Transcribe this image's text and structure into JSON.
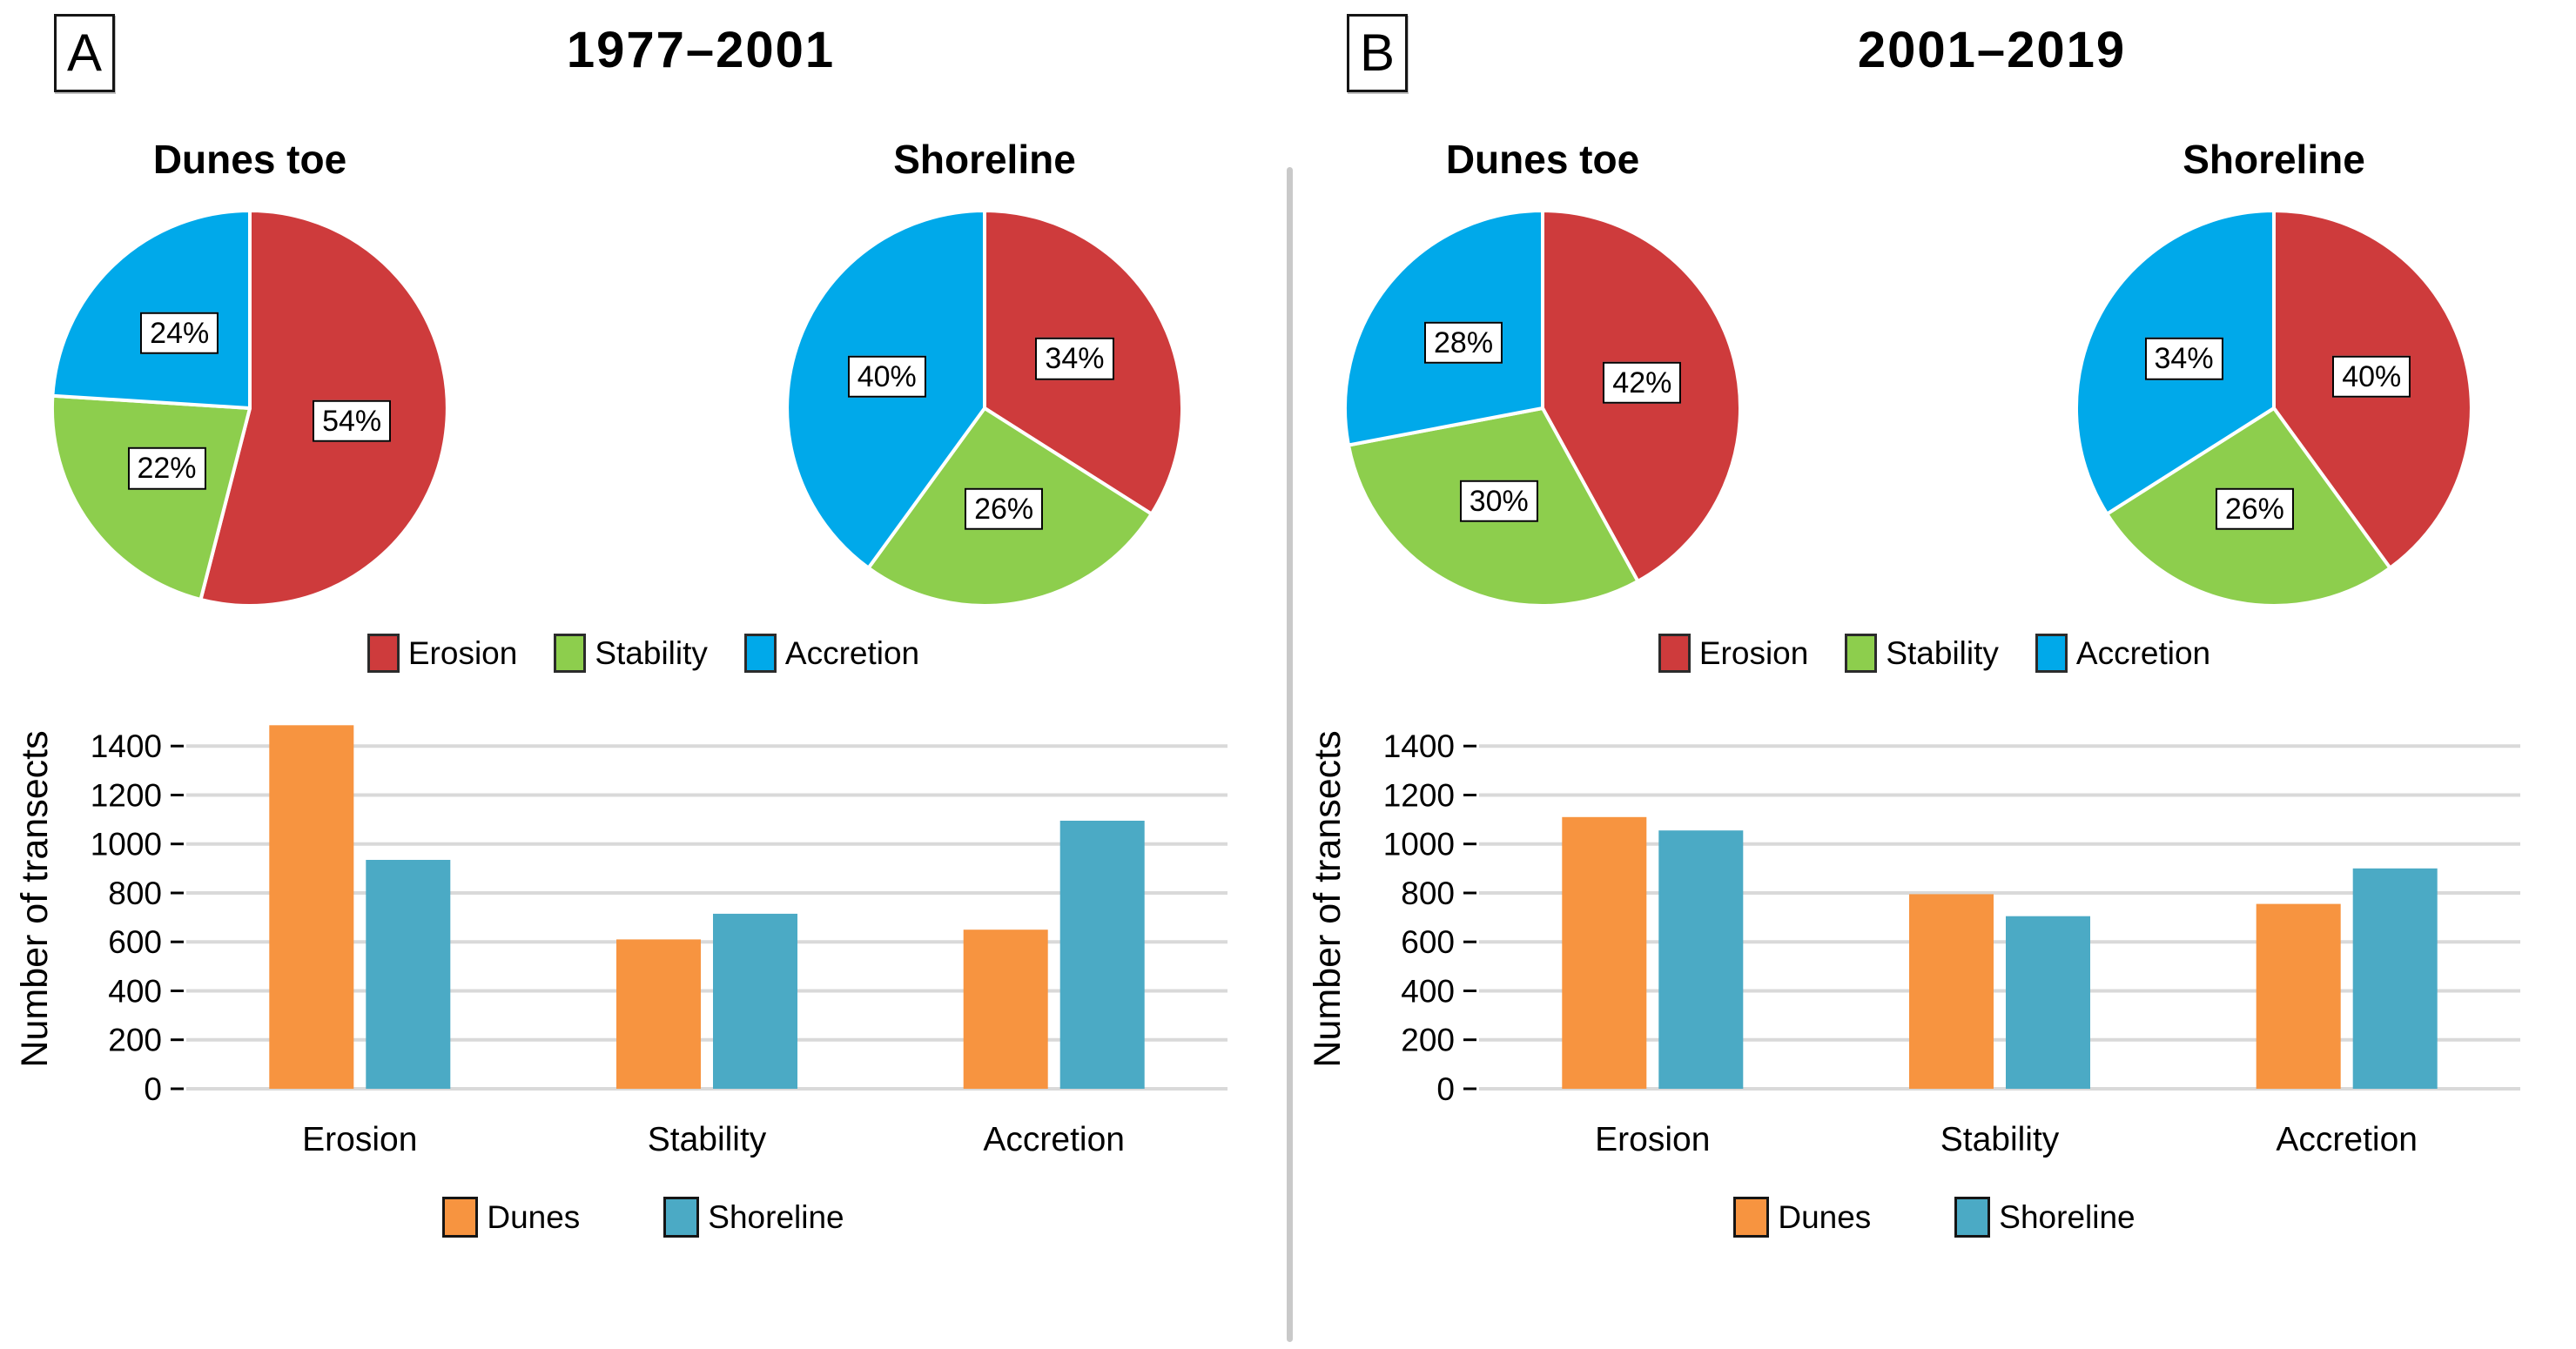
{
  "colors": {
    "erosion": "#CE3B3C",
    "stability": "#8DCE4D",
    "accretion": "#00A9EA",
    "dunes": "#F79440",
    "shoreline": "#4BAAC5",
    "grid": "#D9D9D9",
    "tick": "#000000",
    "divider": "#C9C9C9"
  },
  "panels": [
    {
      "label": "A",
      "title": "1977–2001",
      "pie_legend": [
        {
          "label": "Erosion",
          "color": "erosion"
        },
        {
          "label": "Stability",
          "color": "stability"
        },
        {
          "label": "Accretion",
          "color": "accretion"
        }
      ],
      "bar_legend": [
        {
          "label": "Dunes",
          "color": "dunes"
        },
        {
          "label": "Shoreline",
          "color": "shoreline"
        }
      ]
    },
    {
      "label": "B",
      "title": "2001–2019",
      "pie_legend": [
        {
          "label": "Erosion",
          "color": "erosion"
        },
        {
          "label": "Stability",
          "color": "stability"
        },
        {
          "label": "Accretion",
          "color": "accretion"
        }
      ],
      "bar_legend": [
        {
          "label": "Dunes",
          "color": "dunes"
        },
        {
          "label": "Shoreline",
          "color": "shoreline"
        }
      ]
    }
  ],
  "chart_data": [
    {
      "type": "pie",
      "panel": "A",
      "title": "Dunes toe",
      "labels": [
        "Erosion",
        "Stability",
        "Accretion"
      ],
      "values": [
        54,
        22,
        24
      ],
      "unit": "%",
      "colors": [
        "erosion",
        "stability",
        "accretion"
      ],
      "start": "12 o'clock",
      "direction": "clockwise"
    },
    {
      "type": "pie",
      "panel": "A",
      "title": "Shoreline",
      "labels": [
        "Erosion",
        "Stability",
        "Accretion"
      ],
      "values": [
        34,
        26,
        40
      ],
      "unit": "%",
      "colors": [
        "erosion",
        "stability",
        "accretion"
      ],
      "start": "12 o'clock",
      "direction": "clockwise"
    },
    {
      "type": "bar",
      "panel": "A",
      "ylabel": "Number of transects",
      "categories": [
        "Erosion",
        "Stability",
        "Accretion"
      ],
      "series": [
        {
          "name": "Dunes",
          "color": "dunes",
          "values": [
            1485,
            610,
            650
          ]
        },
        {
          "name": "Shoreline",
          "color": "shoreline",
          "values": [
            935,
            715,
            1095
          ]
        }
      ],
      "yticks": [
        0,
        200,
        400,
        600,
        800,
        1000,
        1200,
        1400
      ],
      "ylim": [
        0,
        1550
      ],
      "grid": true,
      "legend_position": "bottom"
    },
    {
      "type": "pie",
      "panel": "B",
      "title": "Dunes toe",
      "labels": [
        "Erosion",
        "Stability",
        "Accretion"
      ],
      "values": [
        42,
        30,
        28
      ],
      "unit": "%",
      "colors": [
        "erosion",
        "stability",
        "accretion"
      ],
      "start": "12 o'clock",
      "direction": "clockwise"
    },
    {
      "type": "pie",
      "panel": "B",
      "title": "Shoreline",
      "labels": [
        "Erosion",
        "Stability",
        "Accretion"
      ],
      "values": [
        40,
        26,
        34
      ],
      "unit": "%",
      "colors": [
        "erosion",
        "stability",
        "accretion"
      ],
      "start": "12 o'clock",
      "direction": "clockwise"
    },
    {
      "type": "bar",
      "panel": "B",
      "ylabel": "Number of transects",
      "categories": [
        "Erosion",
        "Stability",
        "Accretion"
      ],
      "series": [
        {
          "name": "Dunes",
          "color": "dunes",
          "values": [
            1110,
            795,
            755
          ]
        },
        {
          "name": "Shoreline",
          "color": "shoreline",
          "values": [
            1055,
            705,
            900
          ]
        }
      ],
      "yticks": [
        0,
        200,
        400,
        600,
        800,
        1000,
        1200,
        1400
      ],
      "ylim": [
        0,
        1550
      ],
      "grid": true,
      "legend_position": "bottom"
    }
  ]
}
